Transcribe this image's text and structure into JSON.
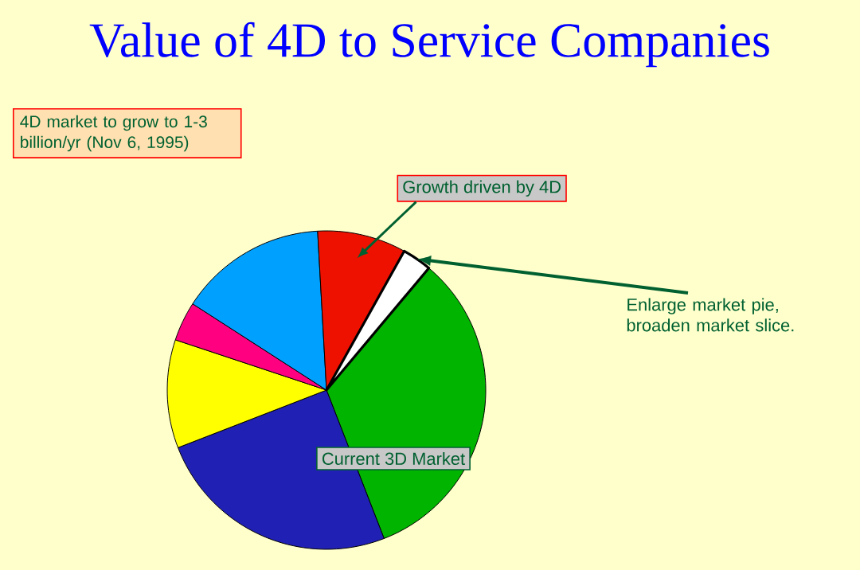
{
  "chart_data": {
    "type": "pie",
    "title": "Value of 4D to Service Companies",
    "categories": [
      null,
      null,
      null,
      null,
      null,
      "Growth driven by 4D",
      null
    ],
    "values": [
      33,
      25,
      11,
      4,
      15,
      9,
      3
    ],
    "colors": [
      "#00b400",
      "#2020b4",
      "#ffff00",
      "#ff0080",
      "#00a0ff",
      "#ee1100",
      "#ffffff"
    ],
    "annotations": [
      "4D market to grow to 1-3 billion/yr (Nov 6, 1995)",
      "Current 3D Market",
      "Enlarge market pie, broaden market slice."
    ]
  }
}
